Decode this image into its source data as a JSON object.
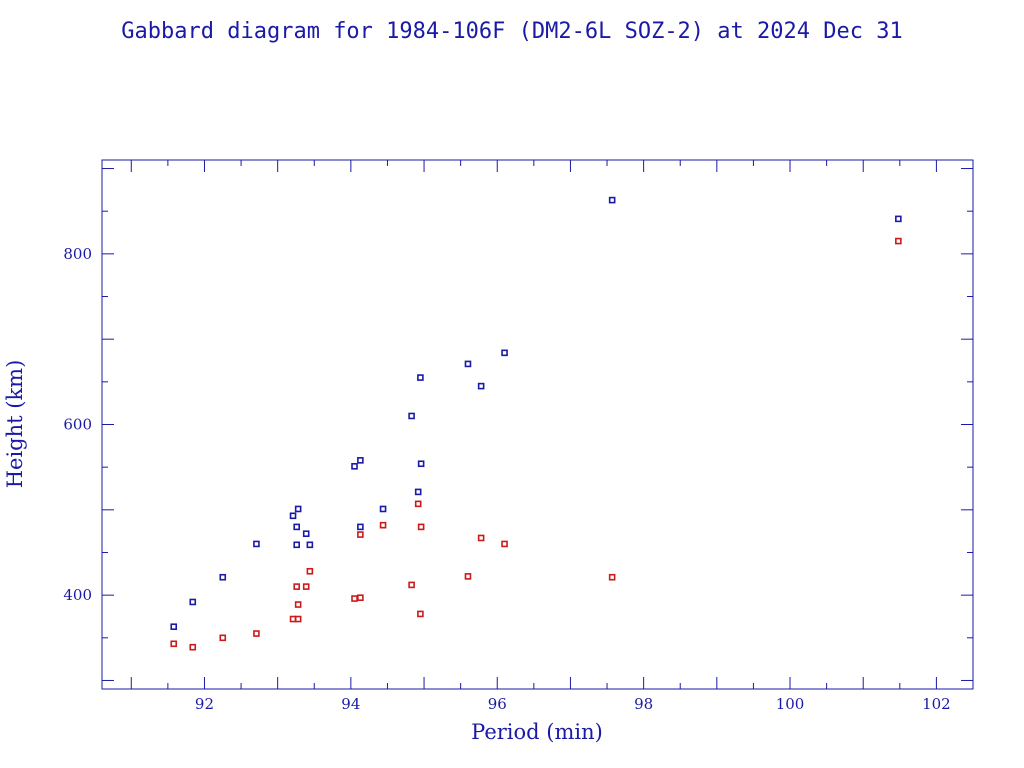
{
  "chart_data": {
    "type": "scatter",
    "title": "Gabbard diagram for 1984-106F (DM2-6L SOZ-2) at 2024 Dec 31",
    "xlabel": "Period (min)",
    "ylabel": "Height (km)",
    "xlim": [
      90.6,
      102.5
    ],
    "ylim": [
      290,
      910
    ],
    "xticks": [
      92,
      94,
      96,
      98,
      100,
      102
    ],
    "yticks": [
      400,
      600,
      800
    ],
    "grid": false,
    "legend": "none",
    "series": [
      {
        "color": "#1a1aa6",
        "points": [
          [
            91.58,
            363
          ],
          [
            91.84,
            392
          ],
          [
            92.25,
            421
          ],
          [
            92.71,
            460
          ],
          [
            93.21,
            493
          ],
          [
            93.28,
            501
          ],
          [
            93.26,
            480
          ],
          [
            93.26,
            459
          ],
          [
            93.39,
            472
          ],
          [
            93.44,
            459
          ],
          [
            94.05,
            551
          ],
          [
            94.13,
            558
          ],
          [
            94.13,
            480
          ],
          [
            94.44,
            501
          ],
          [
            94.83,
            610
          ],
          [
            94.92,
            521
          ],
          [
            94.95,
            655
          ],
          [
            94.96,
            554
          ],
          [
            95.6,
            671
          ],
          [
            95.78,
            645
          ],
          [
            96.1,
            684
          ],
          [
            97.57,
            863
          ],
          [
            101.48,
            841
          ]
        ]
      },
      {
        "color": "#cc1a1a",
        "points": [
          [
            91.58,
            343
          ],
          [
            91.84,
            339
          ],
          [
            92.25,
            350
          ],
          [
            92.71,
            355
          ],
          [
            93.21,
            372
          ],
          [
            93.28,
            372
          ],
          [
            93.26,
            410
          ],
          [
            93.28,
            389
          ],
          [
            93.39,
            410
          ],
          [
            93.44,
            428
          ],
          [
            94.05,
            396
          ],
          [
            94.13,
            397
          ],
          [
            94.13,
            471
          ],
          [
            94.44,
            482
          ],
          [
            94.83,
            412
          ],
          [
            94.92,
            507
          ],
          [
            94.95,
            378
          ],
          [
            94.96,
            480
          ],
          [
            95.6,
            422
          ],
          [
            95.78,
            467
          ],
          [
            96.1,
            460
          ],
          [
            97.57,
            421
          ],
          [
            101.48,
            815
          ]
        ]
      }
    ]
  }
}
